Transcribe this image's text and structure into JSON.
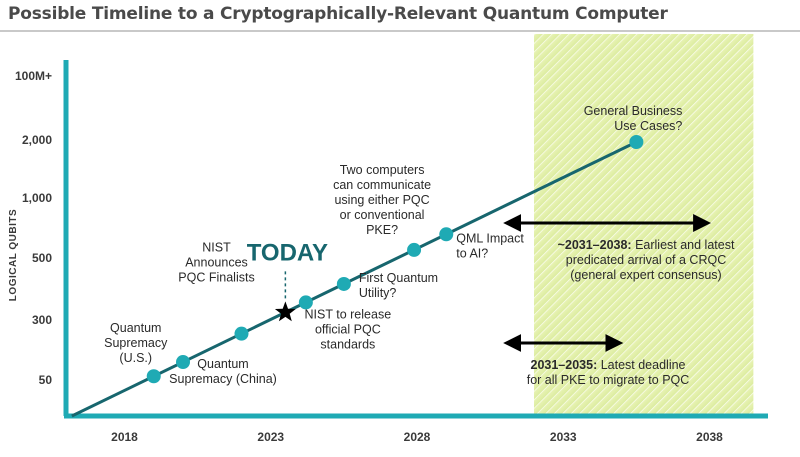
{
  "title": "Possible Timeline to a Cryptographically-Relevant Quantum Computer",
  "colors": {
    "teal": "#1faab4",
    "dark_teal": "#17666e",
    "highlight": "#e4f0a8",
    "text": "#2a2a2a"
  },
  "chart_data": {
    "type": "line",
    "ylabel": "LOGICAL QUBITS",
    "xlabel": "",
    "x_ticks": [
      "2018",
      "2023",
      "2028",
      "2033",
      "2038"
    ],
    "x_range": [
      2016,
      2040
    ],
    "y_ticks": [
      "50",
      "300",
      "500",
      "1,000",
      "2,000",
      "100M+"
    ],
    "y_scale": "categorical (non-linear)",
    "grid": false,
    "trend": {
      "from": [
        2016.2,
        0
      ],
      "to": [
        2035.5,
        2000
      ]
    },
    "events": [
      {
        "id": "quantum-supremacy-us",
        "year": 2019,
        "label_lines": [
          "Quantum",
          "Supremacy",
          "(U.S.)"
        ],
        "marker": "dot"
      },
      {
        "id": "quantum-supremacy-china",
        "year": 2020,
        "label_lines": [
          "Quantum",
          "Supremacy (China)"
        ],
        "marker": "dot"
      },
      {
        "id": "nist-pqc-finalists",
        "year": 2022,
        "label_lines": [
          "NIST",
          "Announces",
          "PQC Finalists"
        ],
        "marker": "dot"
      },
      {
        "id": "today",
        "year": 2023.5,
        "label_lines": [
          "TODAY"
        ],
        "marker": "star"
      },
      {
        "id": "nist-release-pqc",
        "year": 2024.2,
        "label_lines": [
          "NIST to release",
          "official PQC",
          "standards"
        ],
        "marker": "dot"
      },
      {
        "id": "first-quantum-utility",
        "year": 2025.5,
        "label_lines": [
          "First Quantum",
          "Utility?"
        ],
        "marker": "dot"
      },
      {
        "id": "two-computers-communicate",
        "year": 2027.9,
        "label_lines": [
          "Two computers",
          "can communicate",
          "using either PQC",
          "or conventional",
          "PKE?"
        ],
        "marker": "dot"
      },
      {
        "id": "qml-impact",
        "year": 2029,
        "label_lines": [
          "QML Impact",
          "to AI?"
        ],
        "marker": "dot"
      },
      {
        "id": "general-business",
        "year": 2035.5,
        "label_lines": [
          "General Business",
          "Use Cases?"
        ],
        "marker": "dot"
      }
    ],
    "ranges": [
      {
        "id": "crqc-arrival",
        "from": 2031,
        "to": 2038,
        "label_bold": "~2031–2038:",
        "label_lines": [
          " Earliest and latest",
          "predicated arrival of a CRQC",
          "(general expert consensus)"
        ]
      },
      {
        "id": "pke-migration",
        "from": 2031,
        "to": 2035,
        "label_bold": "2031–2035:",
        "label_lines": [
          " Latest deadline",
          "for all PKE to migrate to PQC"
        ]
      }
    ],
    "highlight_region": {
      "from": 2032,
      "to": 2039.5
    }
  }
}
